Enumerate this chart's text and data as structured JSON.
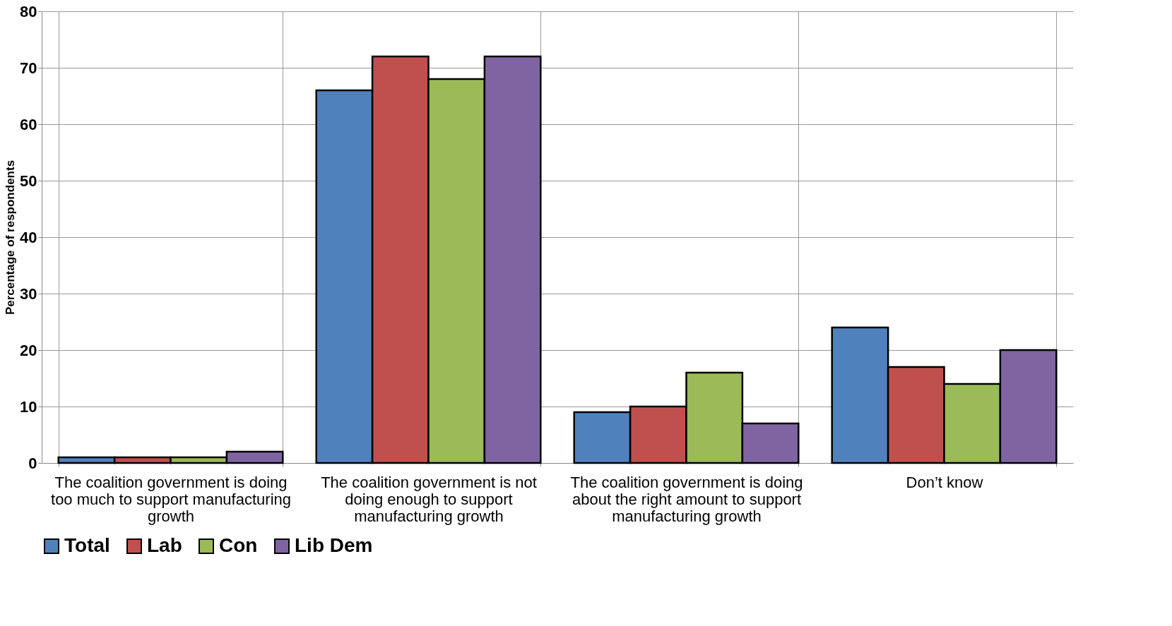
{
  "chart_data": {
    "type": "bar",
    "ylabel": "Percentage of respondents",
    "categories": [
      "The coalition government is doing too much to support manufacturing growth",
      "The coalition government is not doing enough to support manufacturing growth",
      "The coalition government is doing about the right amount to support manufacturing growth",
      "Don’t know"
    ],
    "series": [
      {
        "name": "Total",
        "color": "#4f81bd",
        "values": [
          1,
          66,
          9,
          24
        ]
      },
      {
        "name": "Lab",
        "color": "#c0504d",
        "values": [
          1,
          72,
          10,
          17
        ]
      },
      {
        "name": "Con",
        "color": "#9bbb59",
        "values": [
          1,
          68,
          16,
          14
        ]
      },
      {
        "name": "Lib Dem",
        "color": "#8064a2",
        "values": [
          2,
          72,
          7,
          20
        ]
      }
    ],
    "ylim": [
      0,
      80
    ],
    "yticks": [
      0,
      10,
      20,
      30,
      40,
      50,
      60,
      70,
      80
    ],
    "grid": true,
    "legend": "bottom"
  }
}
